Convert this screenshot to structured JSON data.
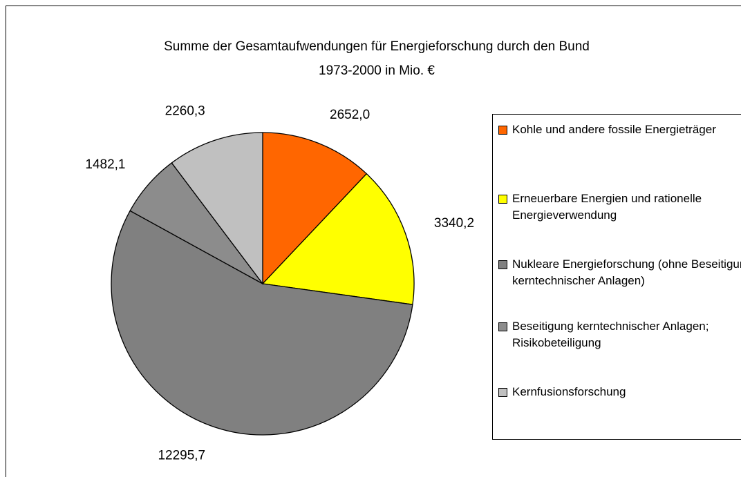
{
  "chart_data": {
    "type": "pie",
    "title": "Summe der  Gesamtaufwendungen für Energieforschung durch den Bund",
    "subtitle": "1973-2000 in Mio. €",
    "categories": [
      "Kohle und andere fossile Energieträger",
      "Erneuerbare Energien und rationelle Energieverwendung",
      "Nukleare Energieforschung (ohne Beseitigung kerntechnischer Anlagen)",
      "Beseitigung kerntechnischer Anlagen; Risikobeteiligung",
      "Kernfusionsforschung"
    ],
    "values": [
      2652.0,
      3340.2,
      12295.7,
      1482.1,
      2260.3
    ],
    "value_labels": [
      "2652,0",
      "3340,2",
      "12295,7",
      "1482,1",
      "2260,3"
    ],
    "colors": [
      "#ff6600",
      "#ffff00",
      "#808080",
      "#8c8c8c",
      "#c0c0c0"
    ],
    "legend": "right"
  }
}
